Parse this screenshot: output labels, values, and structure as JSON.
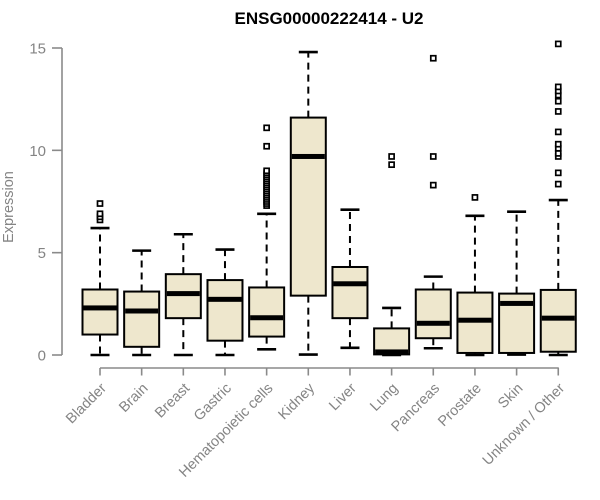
{
  "chart_data": {
    "type": "box",
    "title": "ENSG00000222414 - U2",
    "xlabel": "",
    "ylabel": "Expression",
    "ylim": [
      0,
      15.5
    ],
    "yticks": [
      0,
      5,
      10,
      15
    ],
    "grid": false,
    "legend": "none",
    "categories": [
      "Bladder",
      "Brain",
      "Breast",
      "Gastric",
      "Hematopoietic cells",
      "Kidney",
      "Liver",
      "Lung",
      "Pancreas",
      "Prostate",
      "Skin",
      "Unknown / Other"
    ],
    "series": [
      {
        "category": "Bladder",
        "whisker_low": 0.0,
        "q1": 1.0,
        "median": 2.3,
        "q3": 3.2,
        "whisker_high": 6.2,
        "outliers": [
          6.6,
          6.75,
          6.9,
          7.4
        ]
      },
      {
        "category": "Brain",
        "whisker_low": 0.0,
        "q1": 0.4,
        "median": 2.15,
        "q3": 3.1,
        "whisker_high": 5.1,
        "outliers": []
      },
      {
        "category": "Breast",
        "whisker_low": 0.0,
        "q1": 1.8,
        "median": 3.0,
        "q3": 3.95,
        "whisker_high": 5.9,
        "outliers": []
      },
      {
        "category": "Gastric",
        "whisker_low": 0.0,
        "q1": 0.7,
        "median": 2.72,
        "q3": 3.66,
        "whisker_high": 5.15,
        "outliers": []
      },
      {
        "category": "Hematopoietic cells",
        "whisker_low": 0.28,
        "q1": 0.9,
        "median": 1.82,
        "q3": 3.3,
        "whisker_high": 6.9,
        "outliers": [
          7.3,
          7.4,
          7.5,
          7.6,
          7.7,
          7.8,
          7.9,
          8.0,
          8.1,
          8.2,
          8.3,
          8.4,
          8.5,
          8.6,
          8.7,
          8.8,
          8.9,
          9.0,
          10.2,
          11.1
        ]
      },
      {
        "category": "Kidney",
        "whisker_low": 0.02,
        "q1": 2.9,
        "median": 9.7,
        "q3": 11.6,
        "whisker_high": 14.8,
        "outliers": []
      },
      {
        "category": "Liver",
        "whisker_low": 0.35,
        "q1": 1.8,
        "median": 3.48,
        "q3": 4.3,
        "whisker_high": 7.1,
        "outliers": []
      },
      {
        "category": "Lung",
        "whisker_low": 0.0,
        "q1": 0.03,
        "median": 0.15,
        "q3": 1.3,
        "whisker_high": 2.3,
        "outliers": [
          9.3,
          9.7
        ]
      },
      {
        "category": "Pancreas",
        "whisker_low": 0.33,
        "q1": 0.82,
        "median": 1.55,
        "q3": 3.2,
        "whisker_high": 3.83,
        "outliers": [
          8.3,
          9.7,
          14.5
        ]
      },
      {
        "category": "Prostate",
        "whisker_low": 0.0,
        "q1": 0.1,
        "median": 1.7,
        "q3": 3.05,
        "whisker_high": 6.8,
        "outliers": [
          7.7
        ]
      },
      {
        "category": "Skin",
        "whisker_low": 0.02,
        "q1": 0.1,
        "median": 2.52,
        "q3": 3.0,
        "whisker_high": 7.0,
        "outliers": []
      },
      {
        "category": "Unknown / Other",
        "whisker_low": 0.0,
        "q1": 0.16,
        "median": 1.8,
        "q3": 3.18,
        "whisker_high": 7.57,
        "outliers": [
          8.35,
          8.9,
          9.7,
          9.85,
          10.1,
          10.3,
          10.9,
          11.9,
          12.4,
          12.7,
          12.9,
          13.1,
          15.2
        ]
      }
    ],
    "colors": {
      "box_fill": "#EEE7CD",
      "box_border": "#000000",
      "median": "#000000",
      "whisker": "#000000",
      "outlier": "#000000",
      "axis": "#8A8A8A",
      "tick_label": "#848484",
      "title": "#000000"
    }
  }
}
